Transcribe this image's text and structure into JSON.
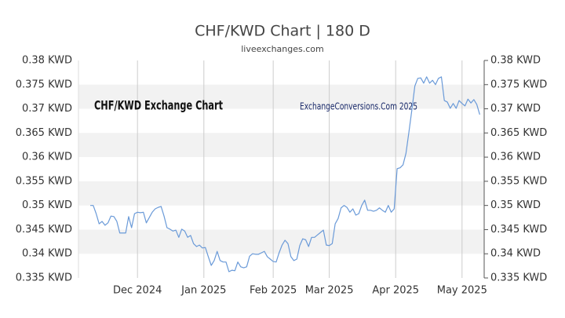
{
  "chart_data": {
    "type": "line",
    "title": "CHF/KWD Chart | 180 D",
    "subtitle": "liveexchanges.com",
    "annotations": [
      "CHF/KWD Exchange Chart",
      "ExchangeConversions.Com 2025"
    ],
    "color": "#6a9ad8",
    "grid": "bands",
    "values": [
      0.35,
      0.35,
      0.3483,
      0.3462,
      0.3467,
      0.3459,
      0.3464,
      0.3478,
      0.3477,
      0.3467,
      0.3443,
      0.3443,
      0.3443,
      0.3477,
      0.3454,
      0.3483,
      0.3486,
      0.3485,
      0.3486,
      0.3464,
      0.3475,
      0.3486,
      0.3493,
      0.3496,
      0.3498,
      0.3478,
      0.3454,
      0.3451,
      0.3447,
      0.3449,
      0.3434,
      0.3451,
      0.3447,
      0.3434,
      0.3438,
      0.3421,
      0.3415,
      0.3418,
      0.3412,
      0.3413,
      0.3394,
      0.3376,
      0.3386,
      0.3405,
      0.3386,
      0.3383,
      0.3383,
      0.3363,
      0.3366,
      0.3365,
      0.3383,
      0.3373,
      0.3371,
      0.3373,
      0.3395,
      0.34,
      0.3399,
      0.3399,
      0.3402,
      0.3405,
      0.3394,
      0.3389,
      0.3384,
      0.3383,
      0.3402,
      0.3418,
      0.3428,
      0.3421,
      0.3394,
      0.3386,
      0.3389,
      0.3417,
      0.3431,
      0.3429,
      0.3415,
      0.3434,
      0.3434,
      0.3439,
      0.3444,
      0.3449,
      0.3418,
      0.3417,
      0.3421,
      0.3462,
      0.3473,
      0.3495,
      0.35,
      0.3496,
      0.3486,
      0.3493,
      0.348,
      0.3483,
      0.35,
      0.3511,
      0.349,
      0.349,
      0.3488,
      0.349,
      0.3495,
      0.349,
      0.3486,
      0.35,
      0.3486,
      0.3493,
      0.3576,
      0.3578,
      0.3584,
      0.3608,
      0.3652,
      0.3698,
      0.3747,
      0.3763,
      0.3764,
      0.3753,
      0.3766,
      0.3753,
      0.3759,
      0.375,
      0.3763,
      0.3766,
      0.3717,
      0.3714,
      0.3701,
      0.3711,
      0.3701,
      0.3717,
      0.3711,
      0.3706,
      0.372,
      0.3712,
      0.3719,
      0.3709,
      0.3688
    ],
    "xlim": [
      -4,
      133.5
    ],
    "xticks": [
      {
        "value": 16,
        "label": "Dec 2024"
      },
      {
        "value": 38.5,
        "label": "Jan 2025"
      },
      {
        "value": 62,
        "label": "Feb 2025"
      },
      {
        "value": 81,
        "label": "Mar 2025"
      },
      {
        "value": 103.5,
        "label": "Apr 2025"
      },
      {
        "value": 126,
        "label": "May 2025"
      }
    ],
    "ylim": [
      0.335,
      0.38
    ],
    "yticks": [
      {
        "value": 0.335,
        "label": "0.335 KWD"
      },
      {
        "value": 0.34,
        "label": "0.34 KWD"
      },
      {
        "value": 0.345,
        "label": "0.345 KWD"
      },
      {
        "value": 0.35,
        "label": "0.35 KWD"
      },
      {
        "value": 0.355,
        "label": "0.355 KWD"
      },
      {
        "value": 0.36,
        "label": "0.36 KWD"
      },
      {
        "value": 0.365,
        "label": "0.365 KWD"
      },
      {
        "value": 0.37,
        "label": "0.37 KWD"
      },
      {
        "value": 0.375,
        "label": "0.375 KWD"
      },
      {
        "value": 0.38,
        "label": "0.38 KWD"
      }
    ],
    "y2lim": [
      0.335,
      0.38
    ],
    "y2ticks": [
      {
        "value": 0.335,
        "label": "0.335 KWD"
      },
      {
        "value": 0.34,
        "label": "0.34 KWD"
      },
      {
        "value": 0.345,
        "label": "0.345 KWD"
      },
      {
        "value": 0.35,
        "label": "0.35 KWD"
      },
      {
        "value": 0.355,
        "label": "0.355 KWD"
      },
      {
        "value": 0.36,
        "label": "0.36 KWD"
      },
      {
        "value": 0.365,
        "label": "0.365 KWD"
      },
      {
        "value": 0.37,
        "label": "0.37 KWD"
      },
      {
        "value": 0.375,
        "label": "0.375 KWD"
      },
      {
        "value": 0.38,
        "label": "0.38 KWD"
      }
    ]
  }
}
